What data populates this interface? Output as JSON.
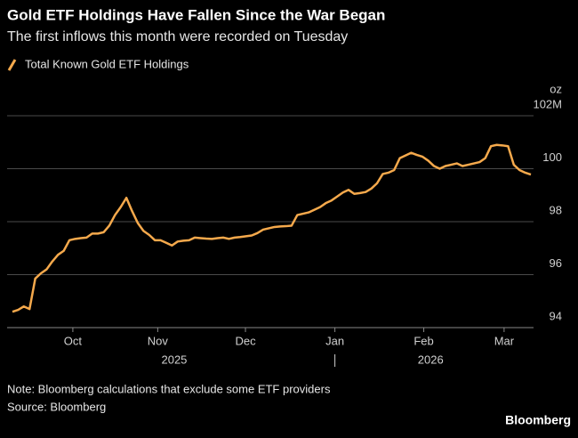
{
  "chart_data": {
    "type": "line",
    "title": "Gold ETF Holdings Have Fallen Since the War Began",
    "subtitle": "The first inflows this month were recorded on Tuesday",
    "y_unit": "oz",
    "series": [
      {
        "name": "Total Known Gold ETF Holdings",
        "color": "#f5a94c",
        "values": [
          94.6,
          94.67,
          94.8,
          94.7,
          95.85,
          96.05,
          96.2,
          96.5,
          96.75,
          96.9,
          97.3,
          97.35,
          97.38,
          97.4,
          97.55,
          97.55,
          97.6,
          97.85,
          98.25,
          98.55,
          98.9,
          98.4,
          97.95,
          97.65,
          97.5,
          97.3,
          97.3,
          97.2,
          97.1,
          97.25,
          97.28,
          97.3,
          97.4,
          97.38,
          97.36,
          97.35,
          97.38,
          97.4,
          97.35,
          97.4,
          97.42,
          97.45,
          97.48,
          97.57,
          97.7,
          97.75,
          97.8,
          97.82,
          97.83,
          97.85,
          98.25,
          98.3,
          98.35,
          98.45,
          98.55,
          98.7,
          98.8,
          98.95,
          99.1,
          99.2,
          99.05,
          99.08,
          99.12,
          99.25,
          99.45,
          99.8,
          99.85,
          99.95,
          100.4,
          100.5,
          100.6,
          100.52,
          100.45,
          100.3,
          100.1,
          100.0,
          100.1,
          100.15,
          100.2,
          100.1,
          100.15,
          100.2,
          100.25,
          100.4,
          100.85,
          100.9,
          100.88,
          100.85,
          100.15,
          99.95,
          99.85,
          99.78
        ]
      }
    ],
    "xlim": [
      0,
      91
    ],
    "xticks": [
      {
        "value": 10.6,
        "label": "Oct"
      },
      {
        "value": 25.5,
        "label": "Nov"
      },
      {
        "value": 40.9,
        "label": "Dec"
      },
      {
        "value": 56.6,
        "label": "Jan"
      },
      {
        "value": 72.2,
        "label": "Feb"
      },
      {
        "value": 86.3,
        "label": "Mar"
      }
    ],
    "year_ticks": [
      {
        "value": 28.4,
        "label": "2025"
      },
      {
        "value": 73.4,
        "label": "2026"
      }
    ],
    "ylim": [
      94,
      102
    ],
    "yticks": [
      94,
      96,
      98,
      100,
      {
        "value": 102,
        "label": "102M"
      }
    ],
    "grid": true,
    "notes": [
      "Note: Bloomberg calculations that exclude some ETF providers",
      "Source: Bloomberg"
    ],
    "brand": "Bloomberg"
  }
}
